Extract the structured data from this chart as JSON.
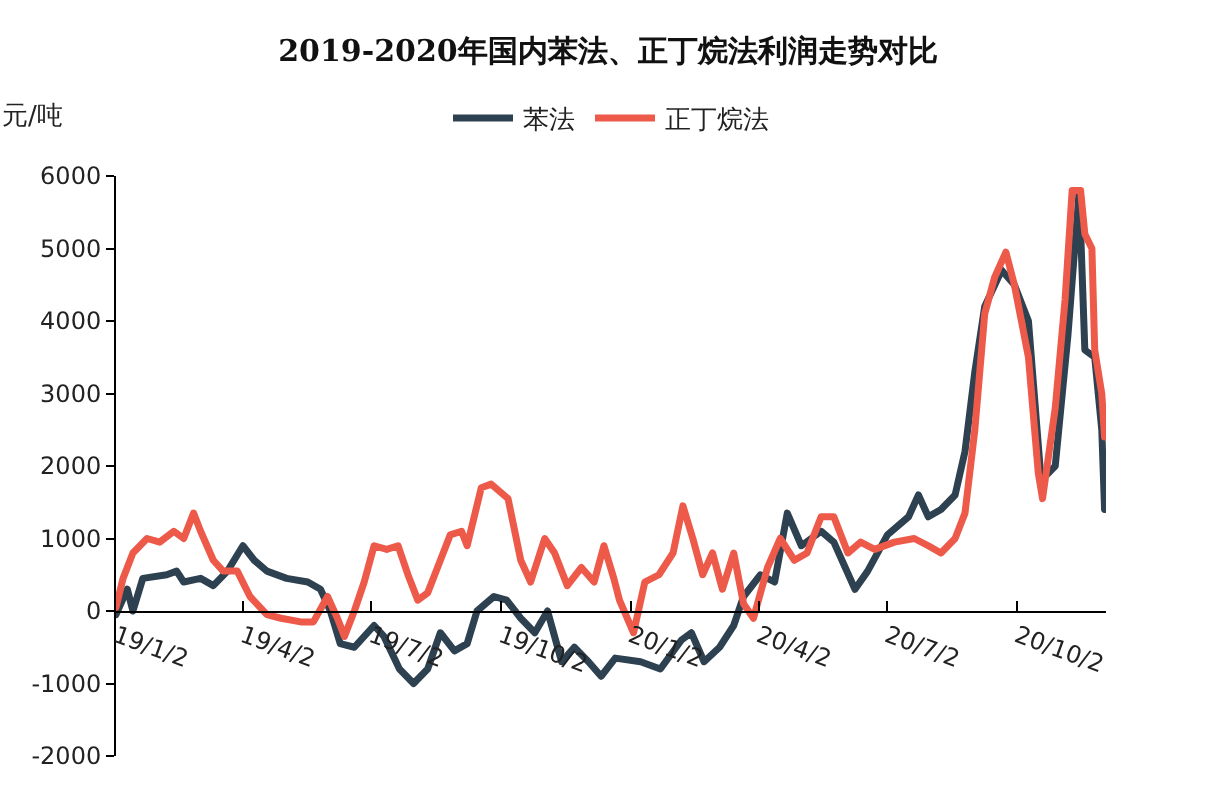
{
  "chart_data": {
    "type": "line",
    "title": "2019-2020年国内苯法、正丁烷法利润走势对比",
    "annotations": [
      "元/吨"
    ],
    "legend": "top",
    "marker": "none",
    "line_style": "solid",
    "ylim": [
      -2000,
      6000
    ],
    "yticks": [
      -2000,
      -1000,
      0,
      1000,
      2000,
      3000,
      4000,
      5000,
      6000
    ],
    "xlim": [
      "2019-01-02",
      "2020-12-04"
    ],
    "xticks": [
      {
        "value": "2019-01-02",
        "label": "19/1/2"
      },
      {
        "value": "2019-04-02",
        "label": "19/4/2"
      },
      {
        "value": "2019-07-02",
        "label": "19/7/2"
      },
      {
        "value": "2019-10-02",
        "label": "19/10/2"
      },
      {
        "value": "2020-01-02",
        "label": "20/1/2"
      },
      {
        "value": "2020-04-02",
        "label": "20/4/2"
      },
      {
        "value": "2020-07-02",
        "label": "20/7/2"
      },
      {
        "value": "2020-10-02",
        "label": "20/10/2"
      }
    ],
    "series": [
      {
        "name": "苯法",
        "color": "#2e4150",
        "x": [
          "2019-01-02",
          "2019-01-10",
          "2019-01-14",
          "2019-01-21",
          "2019-02-07",
          "2019-02-14",
          "2019-02-19",
          "2019-03-03",
          "2019-03-12",
          "2019-03-22",
          "2019-04-02",
          "2019-04-10",
          "2019-04-19",
          "2019-05-03",
          "2019-05-18",
          "2019-05-27",
          "2019-06-03",
          "2019-06-10",
          "2019-06-20",
          "2019-07-04",
          "2019-07-11",
          "2019-07-22",
          "2019-08-01",
          "2019-08-11",
          "2019-08-20",
          "2019-08-30",
          "2019-09-08",
          "2019-09-15",
          "2019-09-27",
          "2019-10-06",
          "2019-10-16",
          "2019-10-26",
          "2019-11-04",
          "2019-11-14",
          "2019-11-23",
          "2019-12-03",
          "2019-12-12",
          "2019-12-22",
          "2020-01-09",
          "2020-01-23",
          "2020-02-07",
          "2020-02-14",
          "2020-02-23",
          "2020-03-05",
          "2020-03-15",
          "2020-03-22",
          "2020-04-03",
          "2020-04-13",
          "2020-04-22",
          "2020-05-02",
          "2020-05-16",
          "2020-05-25",
          "2020-06-09",
          "2020-06-18",
          "2020-07-02",
          "2020-07-17",
          "2020-07-24",
          "2020-07-31",
          "2020-08-09",
          "2020-08-19",
          "2020-08-26",
          "2020-09-02",
          "2020-09-09",
          "2020-09-21",
          "2020-09-30",
          "2020-10-10",
          "2020-10-19",
          "2020-10-29",
          "2020-11-07",
          "2020-11-15",
          "2020-11-19",
          "2020-11-26",
          "2020-12-01",
          "2020-12-03"
        ],
        "values": [
          -50,
          300,
          0,
          450,
          500,
          550,
          400,
          450,
          350,
          550,
          900,
          700,
          550,
          450,
          400,
          300,
          0,
          -450,
          -500,
          -200,
          -350,
          -800,
          -1000,
          -800,
          -300,
          -550,
          -450,
          0,
          200,
          150,
          -100,
          -300,
          0,
          -700,
          -500,
          -700,
          -900,
          -650,
          -700,
          -800,
          -400,
          -300,
          -700,
          -500,
          -200,
          200,
          500,
          400,
          1350,
          900,
          1100,
          950,
          300,
          550,
          1050,
          1300,
          1600,
          1300,
          1400,
          1600,
          2200,
          3300,
          4200,
          4700,
          4500,
          4000,
          1800,
          2000,
          3800,
          5800,
          3600,
          3500,
          2500,
          1400
        ]
      },
      {
        "name": "正丁烷法",
        "color": "#ee5a4a",
        "x": [
          "2019-01-02",
          "2019-01-07",
          "2019-01-14",
          "2019-01-24",
          "2019-02-02",
          "2019-02-12",
          "2019-02-19",
          "2019-02-26",
          "2019-03-03",
          "2019-03-12",
          "2019-03-19",
          "2019-03-29",
          "2019-04-07",
          "2019-04-19",
          "2019-04-29",
          "2019-05-13",
          "2019-05-22",
          "2019-06-01",
          "2019-06-08",
          "2019-06-13",
          "2019-06-20",
          "2019-06-27",
          "2019-07-04",
          "2019-07-13",
          "2019-07-21",
          "2019-07-28",
          "2019-08-04",
          "2019-08-11",
          "2019-08-20",
          "2019-08-27",
          "2019-09-04",
          "2019-09-08",
          "2019-09-18",
          "2019-09-25",
          "2019-10-07",
          "2019-10-16",
          "2019-10-23",
          "2019-11-02",
          "2019-11-09",
          "2019-11-18",
          "2019-11-28",
          "2019-12-07",
          "2019-12-14",
          "2019-12-21",
          "2019-12-25",
          "2020-01-04",
          "2020-01-12",
          "2020-01-22",
          "2020-02-01",
          "2020-02-08",
          "2020-02-15",
          "2020-02-22",
          "2020-02-29",
          "2020-03-07",
          "2020-03-15",
          "2020-03-22",
          "2020-03-29",
          "2020-04-08",
          "2020-04-17",
          "2020-04-27",
          "2020-05-06",
          "2020-05-16",
          "2020-05-25",
          "2020-06-04",
          "2020-06-13",
          "2020-06-23",
          "2020-07-07",
          "2020-07-21",
          "2020-07-31",
          "2020-08-09",
          "2020-08-19",
          "2020-08-26",
          "2020-09-02",
          "2020-09-09",
          "2020-09-16",
          "2020-09-24",
          "2020-09-30",
          "2020-10-10",
          "2020-10-17",
          "2020-10-20",
          "2020-10-29",
          "2020-11-05",
          "2020-11-10",
          "2020-11-16",
          "2020-11-19",
          "2020-11-24",
          "2020-11-26",
          "2020-12-01",
          "2020-12-03"
        ],
        "values": [
          50,
          450,
          800,
          1000,
          950,
          1100,
          1000,
          1350,
          1100,
          700,
          550,
          550,
          200,
          -50,
          -100,
          -150,
          -150,
          200,
          -100,
          -350,
          0,
          400,
          900,
          850,
          900,
          500,
          150,
          250,
          700,
          1050,
          1100,
          900,
          1700,
          1750,
          1550,
          700,
          400,
          1000,
          800,
          350,
          600,
          400,
          900,
          450,
          150,
          -300,
          400,
          500,
          800,
          1450,
          1000,
          500,
          800,
          300,
          800,
          100,
          -100,
          600,
          1000,
          700,
          800,
          1300,
          1300,
          800,
          950,
          850,
          950,
          1000,
          900,
          800,
          1000,
          1350,
          2500,
          4100,
          4600,
          4950,
          4500,
          3500,
          1900,
          1550,
          2800,
          4300,
          5800,
          5800,
          5200,
          5000,
          3600,
          3000,
          2400
        ]
      }
    ]
  }
}
